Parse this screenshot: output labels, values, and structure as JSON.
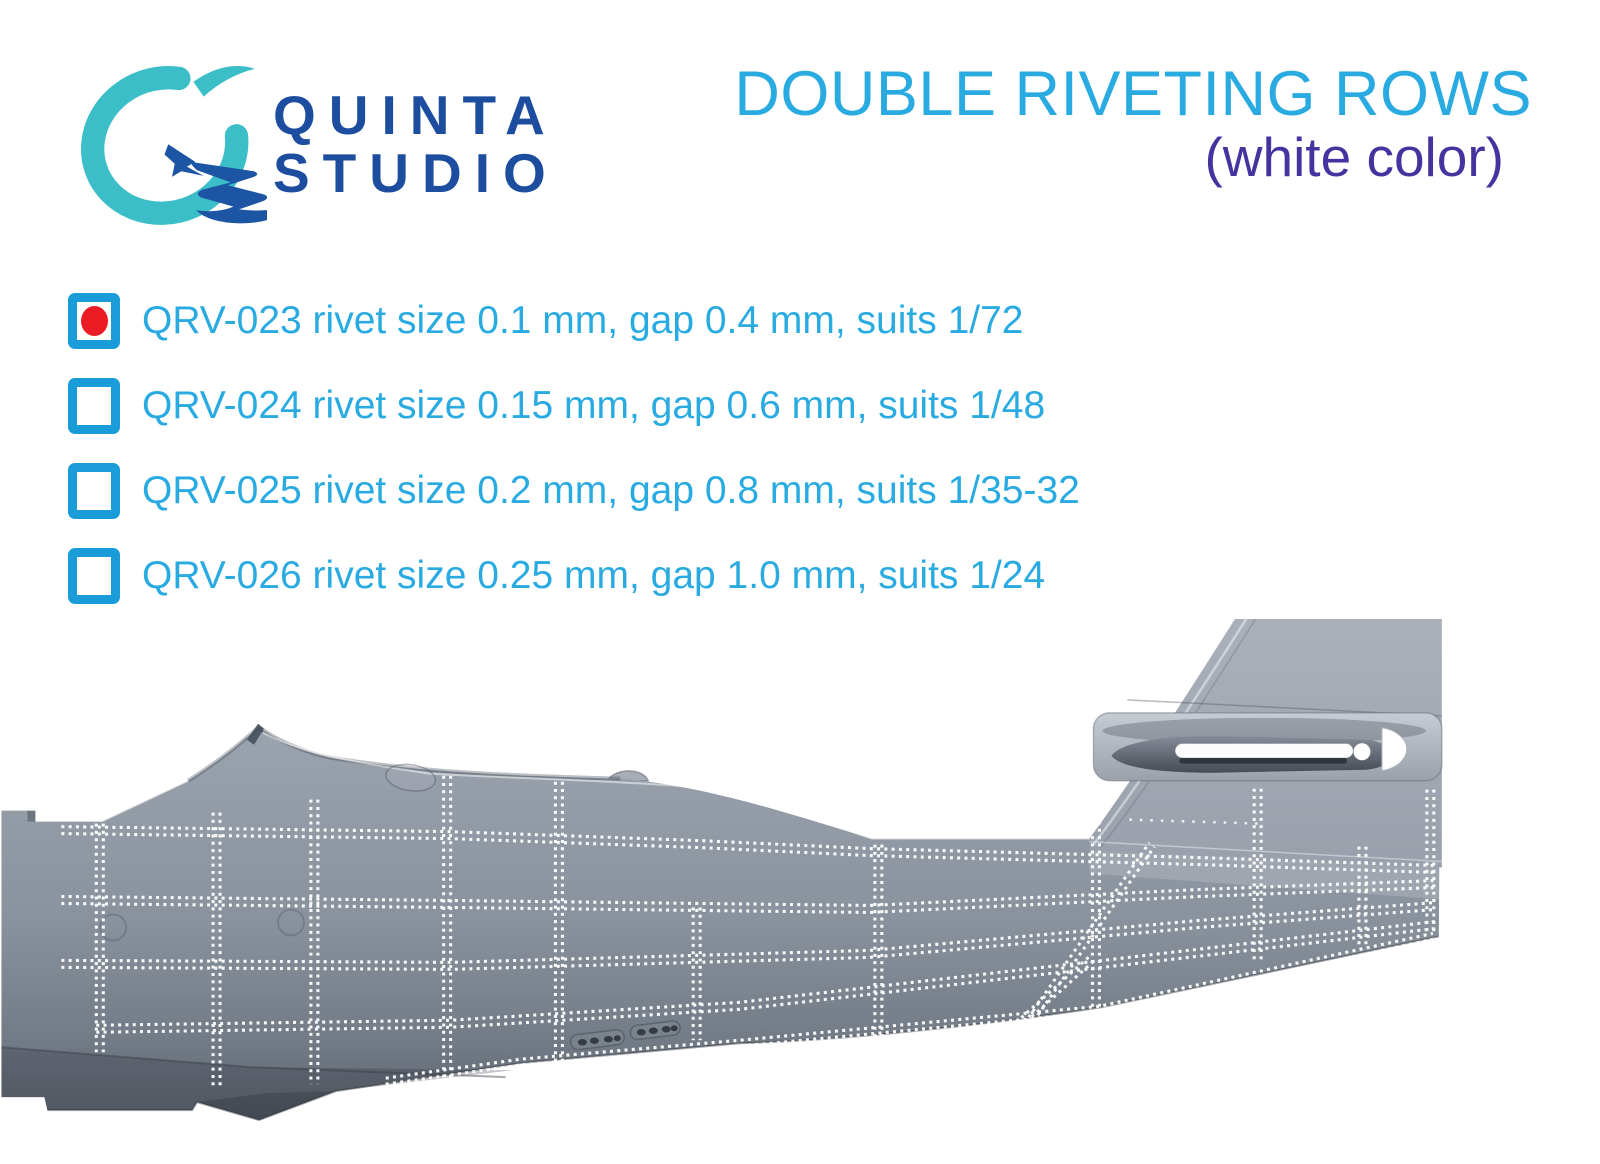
{
  "logo": {
    "line1": "QUINTA",
    "line2": "STUDIO"
  },
  "title": {
    "main": "DOUBLE RIVETING ROWS",
    "sub": "(white color)"
  },
  "products": [
    {
      "code": "QRV-023",
      "label": "QRV-023 rivet size 0.1 mm, gap 0.4 mm, suits 1/72",
      "checked": true
    },
    {
      "code": "QRV-024",
      "label": "QRV-024 rivet size 0.15 mm, gap 0.6 mm, suits 1/48",
      "checked": false
    },
    {
      "code": "QRV-025",
      "label": "QRV-025 rivet size 0.2 mm, gap 0.8 mm, suits 1/35-32",
      "checked": false
    },
    {
      "code": "QRV-026",
      "label": "QRV-026 rivet size 0.25 mm, gap 1.0 mm, suits 1/24",
      "checked": false
    }
  ],
  "icons": {
    "logo_swirl": "teal-swirl-ring-icon",
    "logo_jet": "jet-plane-icon",
    "checkbox_checked_marker": "red-dot"
  },
  "colors": {
    "accent_cyan": "#29abe2",
    "checkbox_cyan": "#1a9cd8",
    "checked_red": "#ec1c24",
    "subtitle_purple": "#4334a0",
    "logo_navy": "#1c4d9f",
    "logo_teal": "#3bbec8",
    "rivet_white": "#ffffff",
    "fuselage_gray": "#9aa2ad"
  }
}
